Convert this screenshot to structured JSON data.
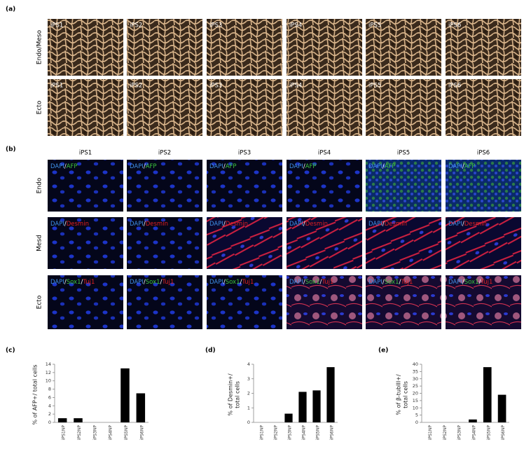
{
  "panel_a": {
    "label": "(a)",
    "row_labels": [
      "Endo/Meso",
      "Ecto"
    ],
    "images": [
      [
        "iPS1",
        "iPS2",
        "iPS3",
        "iPS4",
        "iPS5",
        "iPS6"
      ],
      [
        "iPS1",
        "iPS2",
        "iPS3",
        "iPS4",
        "iPS5",
        "iPS6"
      ]
    ]
  },
  "panel_b": {
    "label": "(b)",
    "column_headers": [
      "iPS1",
      "iPS2",
      "iPS3",
      "iPS4",
      "iPS5",
      "iPS6"
    ],
    "row_labels": [
      "Endo",
      "Mesd",
      "Ecto"
    ],
    "label_colors": [
      [
        "#3f8fe6",
        "#ffffff",
        "#3cc43c"
      ],
      [
        "#3f8fe6",
        "#ffffff",
        "#e02020"
      ],
      [
        "#3f8fe6",
        "#ffffff",
        "#3cc43c",
        "#ffffff",
        "#e02020"
      ]
    ],
    "labels": [
      [
        [
          "DAPI",
          "/",
          "AFP"
        ],
        [
          "DAPI",
          "/",
          "AFP"
        ],
        [
          "DAPI",
          "/",
          "AFP"
        ],
        [
          "DAPI",
          "/",
          "AFP"
        ],
        [
          "DAPI",
          "/",
          "AFP"
        ],
        [
          "DAPI",
          "/",
          "AFP"
        ]
      ],
      [
        [
          "DAPI",
          "/",
          "Desmin"
        ],
        [
          "DAPI",
          "/",
          "Desmin"
        ],
        [
          "DAPI",
          "/",
          "Desmin"
        ],
        [
          "DAPI",
          "/",
          "Desmin"
        ],
        [
          "DAPI",
          "/",
          "Desmin"
        ],
        [
          "DAPI",
          "/",
          "Desmin"
        ]
      ],
      [
        [
          "DAPI",
          "/",
          "Sox1",
          "/",
          "Tuj1"
        ],
        [
          "DAPI",
          "/",
          "Sox1",
          "/",
          "Tuj1"
        ],
        [
          "DAPI",
          "/",
          "Sox1",
          "/",
          "Tuj1"
        ],
        [
          "DAPI",
          "/",
          "Sox1",
          "/",
          "Tuj1"
        ],
        [
          "DAPI",
          "/",
          "Sox1",
          "/",
          "Tuj1"
        ],
        [
          "DAPI",
          "/",
          "Sox1",
          "/",
          "Tuj1"
        ]
      ]
    ]
  },
  "chart_data": [
    {
      "type": "bar",
      "panel_label": "(c)",
      "y_label": [
        "% of AFP+/ total cells"
      ],
      "categories": [
        "iPS1NP",
        "iPS2NP",
        "iPS3NP",
        "iPS4NP",
        "iPS5NP",
        "iPS6NP"
      ],
      "values": [
        1,
        1,
        0,
        0,
        13,
        7
      ],
      "color": "#000000",
      "ylim": [
        0,
        14
      ],
      "yticks": [
        0,
        2,
        4,
        6,
        8,
        10,
        12,
        14
      ]
    },
    {
      "type": "bar",
      "panel_label": "(d)",
      "y_label": [
        "% of Desmin+/",
        "total cells"
      ],
      "categories": [
        "iPS1NP",
        "iPS2NP",
        "iPS3NP",
        "iPS4NP",
        "iPS5NP",
        "iPS6NP"
      ],
      "values": [
        0,
        0,
        0.6,
        2.1,
        2.2,
        3.8
      ],
      "color": "#000000",
      "ylim": [
        0,
        4
      ],
      "yticks": [
        0,
        1,
        2,
        3,
        4
      ]
    },
    {
      "type": "bar",
      "panel_label": "(e)",
      "y_label": [
        "% of β-tubIII+/",
        "total cells"
      ],
      "categories": [
        "iPS1NP",
        "iPS2NP",
        "iPS3NP",
        "iPS4NP",
        "iPS5NP",
        "iPS6NP"
      ],
      "values": [
        0,
        0,
        0,
        2,
        38,
        19
      ],
      "color": "#000000",
      "ylim": [
        0,
        40
      ],
      "yticks": [
        0,
        5,
        10,
        15,
        20,
        25,
        30,
        35,
        40
      ]
    }
  ]
}
